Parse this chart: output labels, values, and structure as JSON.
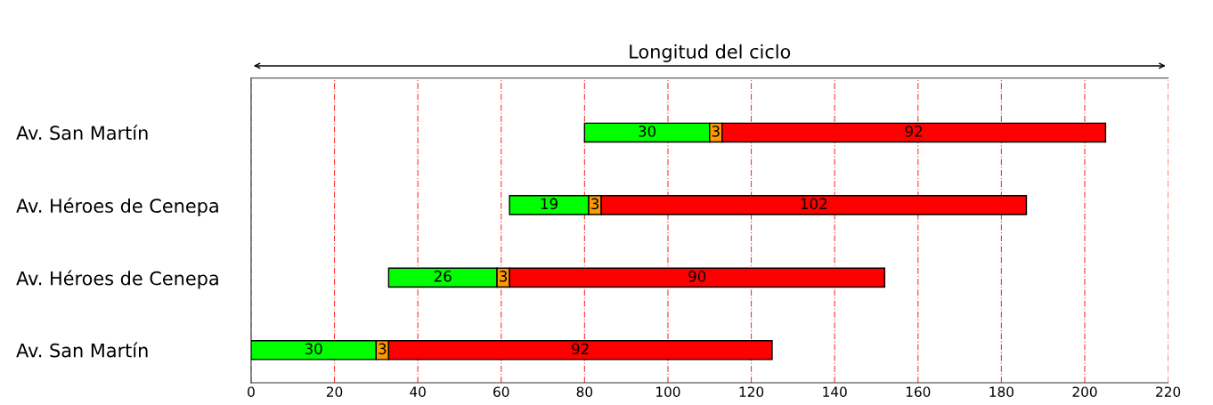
{
  "chart_data": {
    "type": "bar",
    "title": "Longitud del ciclo",
    "orientation": "horizontal",
    "categories": [
      "Av. San Martín",
      "Av. Héroes de Cenepa",
      "Av. Héroes de Cenepa",
      "Av. San Martín"
    ],
    "series": [
      {
        "color": "#00ff00",
        "base": [
          80,
          62,
          33,
          0
        ],
        "values": [
          30,
          19,
          26,
          30
        ]
      },
      {
        "color": "#ff9900",
        "base": [
          110,
          81,
          59,
          30
        ],
        "values": [
          3,
          3,
          3,
          3
        ]
      },
      {
        "color": "#ff0000",
        "base": [
          113,
          84,
          62,
          33
        ],
        "values": [
          92,
          102,
          90,
          92
        ]
      }
    ],
    "xlim": [
      0,
      220
    ],
    "xticks": [
      0,
      20,
      40,
      60,
      80,
      100,
      120,
      140,
      160,
      180,
      200,
      220
    ],
    "grid": "x",
    "data_labels": true
  }
}
